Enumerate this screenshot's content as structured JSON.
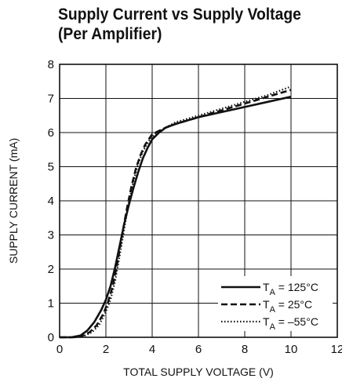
{
  "chart_data": {
    "type": "line",
    "title": [
      "Supply Current vs Supply Voltage",
      "(Per Amplifier)"
    ],
    "xlabel": "TOTAL SUPPLY VOLTAGE (V)",
    "ylabel": "SUPPLY CURRENT (mA)",
    "xlim": [
      0,
      12
    ],
    "ylim": [
      0,
      8
    ],
    "xticks": [
      0,
      2,
      4,
      6,
      8,
      10,
      12
    ],
    "yticks": [
      0,
      1,
      2,
      3,
      4,
      5,
      6,
      7,
      8
    ],
    "grid": true,
    "legend_position": "bottom-right",
    "series": [
      {
        "name": "T_A = 125°C",
        "label_main": "T",
        "label_sub": "A",
        "label_rest": " = 125°C",
        "style": "solid",
        "x": [
          0,
          0.5,
          0.9,
          1.2,
          1.5,
          1.8,
          2.0,
          2.2,
          2.4,
          2.6,
          2.8,
          3.0,
          3.2,
          3.4,
          3.6,
          3.8,
          4.0,
          4.3,
          4.6,
          5.0,
          6.0,
          7.0,
          8.0,
          9.0,
          10.0
        ],
        "y": [
          0,
          0,
          0.05,
          0.2,
          0.45,
          0.8,
          1.1,
          1.5,
          2.05,
          2.7,
          3.35,
          3.9,
          4.4,
          4.85,
          5.25,
          5.55,
          5.8,
          6.0,
          6.15,
          6.25,
          6.45,
          6.6,
          6.75,
          6.9,
          7.05
        ]
      },
      {
        "name": "T_A = 25°C",
        "label_main": "T",
        "label_sub": "A",
        "label_rest": " = 25°C",
        "style": "dashed",
        "x": [
          0,
          0.6,
          1.0,
          1.3,
          1.6,
          1.9,
          2.1,
          2.3,
          2.5,
          2.7,
          2.9,
          3.1,
          3.3,
          3.5,
          3.7,
          4.0,
          4.3,
          4.6,
          5.0,
          6.0,
          7.0,
          8.0,
          9.0,
          10.0
        ],
        "y": [
          0,
          0,
          0.05,
          0.15,
          0.35,
          0.7,
          1.05,
          1.5,
          2.2,
          3.0,
          3.75,
          4.4,
          4.95,
          5.35,
          5.65,
          5.95,
          6.05,
          6.15,
          6.25,
          6.45,
          6.65,
          6.85,
          7.05,
          7.25
        ]
      },
      {
        "name": "T_A = –55°C",
        "label_main": "T",
        "label_sub": "A",
        "label_rest": " = –55°C",
        "style": "dotted",
        "x": [
          0,
          0.7,
          1.1,
          1.4,
          1.7,
          2.0,
          2.2,
          2.4,
          2.6,
          2.8,
          3.0,
          3.2,
          3.4,
          3.6,
          3.9,
          4.2,
          4.6,
          5.0,
          6.0,
          7.0,
          8.0,
          9.0,
          10.0
        ],
        "y": [
          0,
          0,
          0.05,
          0.15,
          0.35,
          0.75,
          1.1,
          1.65,
          2.4,
          3.2,
          4.0,
          4.6,
          5.1,
          5.45,
          5.8,
          6.0,
          6.15,
          6.3,
          6.5,
          6.7,
          6.9,
          7.1,
          7.35
        ]
      }
    ]
  }
}
